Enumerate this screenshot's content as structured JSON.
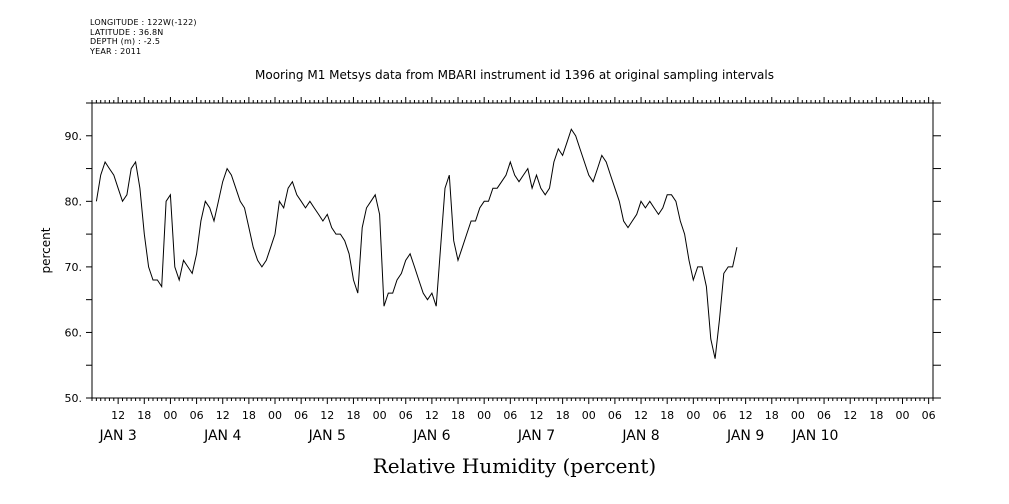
{
  "meta": {
    "longitude": "LONGITUDE : 122W(-122)",
    "latitude": "LATITUDE : 36.8N",
    "depth": "DEPTH (m) : -2.5",
    "year": "YEAR : 2011"
  },
  "footer_title": "Relative Humidity (percent)",
  "chart_data": {
    "type": "line",
    "title": "Mooring M1 Metsys data from MBARI instrument id 1396 at original sampling intervals",
    "ylabel": "percent",
    "xlabel": "",
    "ylim": [
      50,
      95
    ],
    "xlim_hours": [
      0,
      186
    ],
    "y_ticks": [
      50,
      60,
      70,
      80,
      90
    ],
    "y_tick_labels": [
      "50.",
      "60.",
      "70.",
      "80.",
      "90."
    ],
    "x_hour_ticks": [
      {
        "h": 6,
        "label": "12"
      },
      {
        "h": 12,
        "label": "18"
      },
      {
        "h": 18,
        "label": "00"
      },
      {
        "h": 24,
        "label": "06"
      },
      {
        "h": 30,
        "label": "12"
      },
      {
        "h": 36,
        "label": "18"
      },
      {
        "h": 42,
        "label": "00"
      },
      {
        "h": 48,
        "label": "06"
      },
      {
        "h": 54,
        "label": "12"
      },
      {
        "h": 60,
        "label": "18"
      },
      {
        "h": 66,
        "label": "00"
      },
      {
        "h": 72,
        "label": "06"
      },
      {
        "h": 78,
        "label": "12"
      },
      {
        "h": 84,
        "label": "18"
      },
      {
        "h": 90,
        "label": "00"
      },
      {
        "h": 96,
        "label": "06"
      },
      {
        "h": 102,
        "label": "12"
      },
      {
        "h": 108,
        "label": "18"
      },
      {
        "h": 114,
        "label": "00"
      },
      {
        "h": 120,
        "label": "06"
      },
      {
        "h": 126,
        "label": "12"
      },
      {
        "h": 132,
        "label": "18"
      },
      {
        "h": 138,
        "label": "00"
      },
      {
        "h": 144,
        "label": "06"
      },
      {
        "h": 150,
        "label": "12"
      },
      {
        "h": 156,
        "label": "18"
      },
      {
        "h": 162,
        "label": "00"
      },
      {
        "h": 168,
        "label": "06"
      },
      {
        "h": 174,
        "label": "12"
      },
      {
        "h": 180,
        "label": "18"
      },
      {
        "h": 186,
        "label": "00"
      },
      {
        "h": 192,
        "label": "06"
      }
    ],
    "date_labels": [
      {
        "h": 6,
        "label": "JAN  3"
      },
      {
        "h": 30,
        "label": "JAN  4"
      },
      {
        "h": 54,
        "label": "JAN  5"
      },
      {
        "h": 78,
        "label": "JAN  6"
      },
      {
        "h": 102,
        "label": "JAN  7"
      },
      {
        "h": 126,
        "label": "JAN  8"
      },
      {
        "h": 150,
        "label": "JAN  9"
      },
      {
        "h": 166,
        "label": "JAN 10"
      }
    ],
    "series": [
      {
        "color": "#000000",
        "points": [
          [
            1,
            80
          ],
          [
            2,
            84
          ],
          [
            3,
            86
          ],
          [
            4,
            85
          ],
          [
            5,
            84
          ],
          [
            6,
            82
          ],
          [
            7,
            80
          ],
          [
            8,
            81
          ],
          [
            9,
            85
          ],
          [
            10,
            86
          ],
          [
            11,
            82
          ],
          [
            12,
            75
          ],
          [
            13,
            70
          ],
          [
            14,
            68
          ],
          [
            15,
            68
          ],
          [
            16,
            67
          ],
          [
            17,
            80
          ],
          [
            18,
            81
          ],
          [
            19,
            70
          ],
          [
            20,
            68
          ],
          [
            21,
            71
          ],
          [
            22,
            70
          ],
          [
            23,
            69
          ],
          [
            24,
            72
          ],
          [
            25,
            77
          ],
          [
            26,
            80
          ],
          [
            27,
            79
          ],
          [
            28,
            77
          ],
          [
            29,
            80
          ],
          [
            30,
            83
          ],
          [
            31,
            85
          ],
          [
            32,
            84
          ],
          [
            33,
            82
          ],
          [
            34,
            80
          ],
          [
            35,
            79
          ],
          [
            36,
            76
          ],
          [
            37,
            73
          ],
          [
            38,
            71
          ],
          [
            39,
            70
          ],
          [
            40,
            71
          ],
          [
            41,
            73
          ],
          [
            42,
            75
          ],
          [
            43,
            80
          ],
          [
            44,
            79
          ],
          [
            45,
            82
          ],
          [
            46,
            83
          ],
          [
            47,
            81
          ],
          [
            48,
            80
          ],
          [
            49,
            79
          ],
          [
            50,
            80
          ],
          [
            51,
            79
          ],
          [
            52,
            78
          ],
          [
            53,
            77
          ],
          [
            54,
            78
          ],
          [
            55,
            76
          ],
          [
            56,
            75
          ],
          [
            57,
            75
          ],
          [
            58,
            74
          ],
          [
            59,
            72
          ],
          [
            60,
            68
          ],
          [
            61,
            66
          ],
          [
            62,
            76
          ],
          [
            63,
            79
          ],
          [
            64,
            80
          ],
          [
            65,
            81
          ],
          [
            66,
            78
          ],
          [
            67,
            64
          ],
          [
            68,
            66
          ],
          [
            69,
            66
          ],
          [
            70,
            68
          ],
          [
            71,
            69
          ],
          [
            72,
            71
          ],
          [
            73,
            72
          ],
          [
            74,
            70
          ],
          [
            75,
            68
          ],
          [
            76,
            66
          ],
          [
            77,
            65
          ],
          [
            78,
            66
          ],
          [
            79,
            64
          ],
          [
            80,
            73
          ],
          [
            81,
            82
          ],
          [
            82,
            84
          ],
          [
            83,
            74
          ],
          [
            84,
            71
          ],
          [
            85,
            73
          ],
          [
            86,
            75
          ],
          [
            87,
            77
          ],
          [
            88,
            77
          ],
          [
            89,
            79
          ],
          [
            90,
            80
          ],
          [
            91,
            80
          ],
          [
            92,
            82
          ],
          [
            93,
            82
          ],
          [
            94,
            83
          ],
          [
            95,
            84
          ],
          [
            96,
            86
          ],
          [
            97,
            84
          ],
          [
            98,
            83
          ],
          [
            99,
            84
          ],
          [
            100,
            85
          ],
          [
            101,
            82
          ],
          [
            102,
            84
          ],
          [
            103,
            82
          ],
          [
            104,
            81
          ],
          [
            105,
            82
          ],
          [
            106,
            86
          ],
          [
            107,
            88
          ],
          [
            108,
            87
          ],
          [
            109,
            89
          ],
          [
            110,
            91
          ],
          [
            111,
            90
          ],
          [
            112,
            88
          ],
          [
            113,
            86
          ],
          [
            114,
            84
          ],
          [
            115,
            83
          ],
          [
            116,
            85
          ],
          [
            117,
            87
          ],
          [
            118,
            86
          ],
          [
            119,
            84
          ],
          [
            120,
            82
          ],
          [
            121,
            80
          ],
          [
            122,
            77
          ],
          [
            123,
            76
          ],
          [
            124,
            77
          ],
          [
            125,
            78
          ],
          [
            126,
            80
          ],
          [
            127,
            79
          ],
          [
            128,
            80
          ],
          [
            129,
            79
          ],
          [
            130,
            78
          ],
          [
            131,
            79
          ],
          [
            132,
            81
          ],
          [
            133,
            81
          ],
          [
            134,
            80
          ],
          [
            135,
            77
          ],
          [
            136,
            75
          ],
          [
            137,
            71
          ],
          [
            138,
            68
          ],
          [
            139,
            70
          ],
          [
            140,
            70
          ],
          [
            141,
            67
          ],
          [
            142,
            59
          ],
          [
            143,
            56
          ],
          [
            144,
            62
          ],
          [
            145,
            69
          ],
          [
            146,
            70
          ],
          [
            147,
            70
          ],
          [
            148,
            73
          ]
        ]
      }
    ]
  }
}
